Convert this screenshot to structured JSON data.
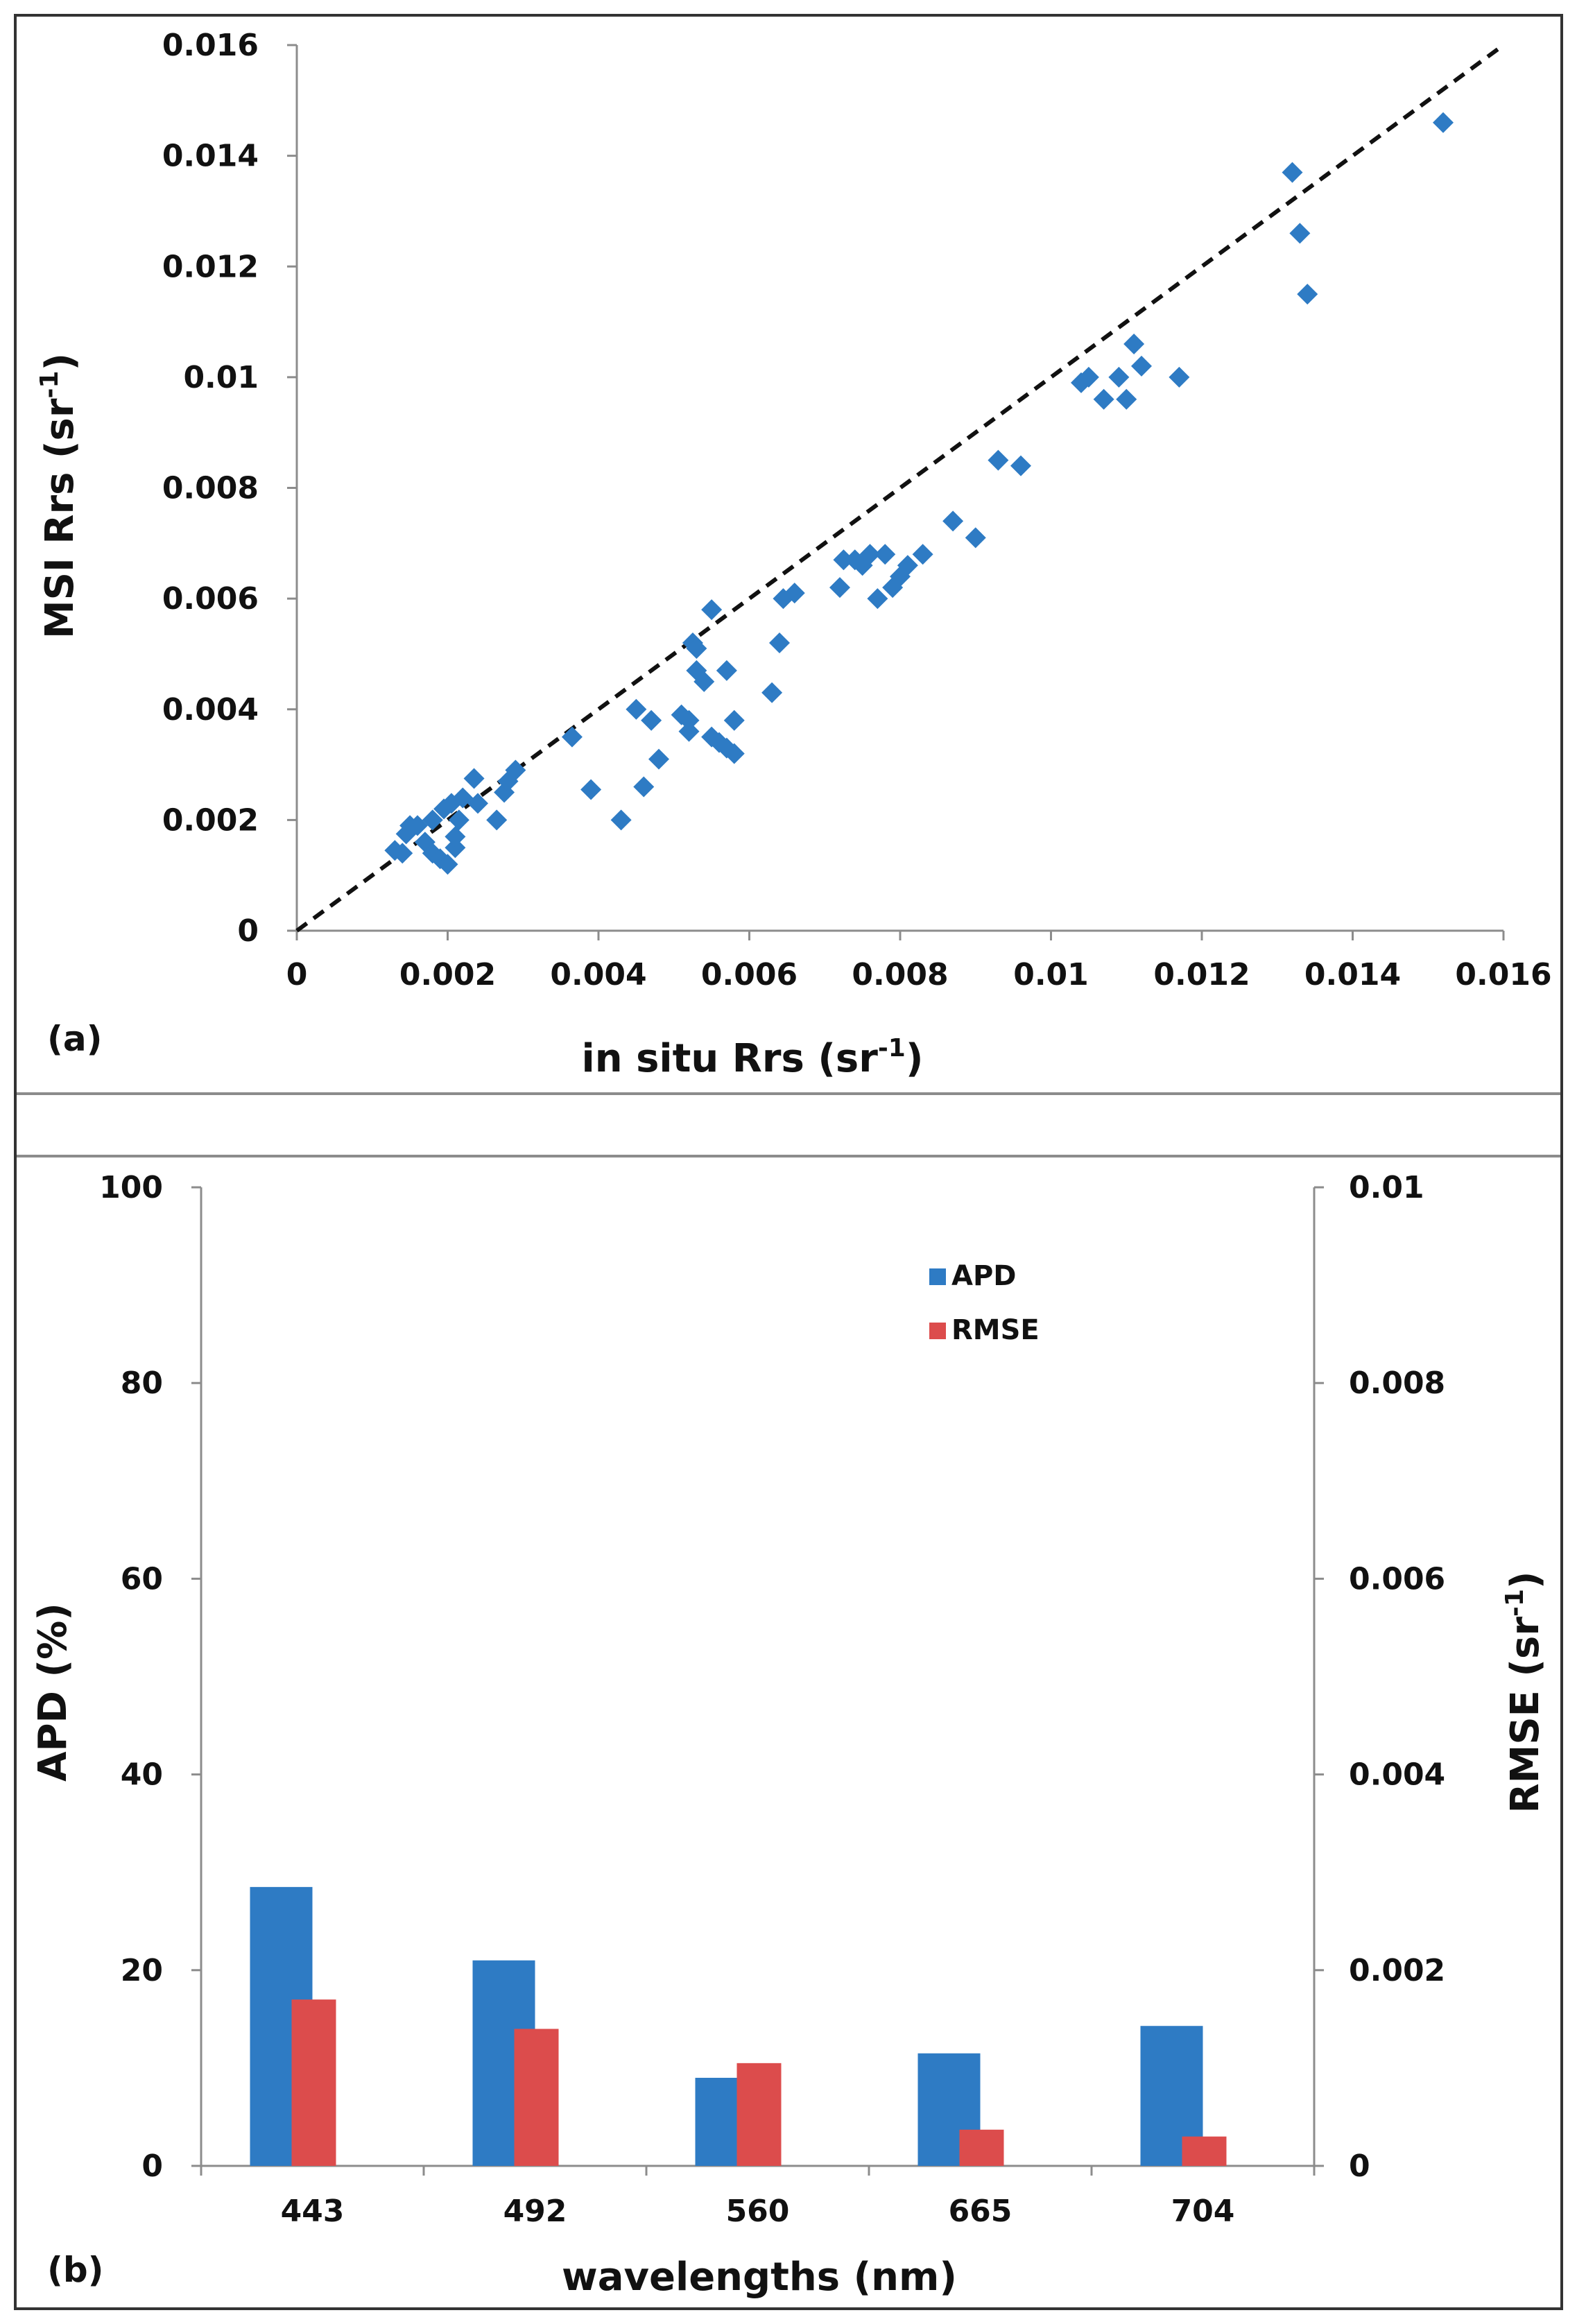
{
  "chart_data": [
    {
      "type": "scatter",
      "panel_label": "(a)",
      "xlabel": "in situ Rrs (sr",
      "ylabel": "MSI Rrs (sr",
      "unit_superscript": "-1",
      "unit_close": ")",
      "xlim": [
        0,
        0.016
      ],
      "ylim": [
        0,
        0.016
      ],
      "xticks": [
        "0",
        "0.002",
        "0.004",
        "0.006",
        "0.008",
        "0.01",
        "0.012",
        "0.014",
        "0.016"
      ],
      "yticks": [
        "0",
        "0.002",
        "0.004",
        "0.006",
        "0.008",
        "0.01",
        "0.012",
        "0.014",
        "0.016"
      ],
      "reference_line": "1:1",
      "marker_color": "#2e7bc4",
      "points": [
        [
          0.0013,
          0.00145
        ],
        [
          0.0014,
          0.0014
        ],
        [
          0.00145,
          0.00175
        ],
        [
          0.0015,
          0.0019
        ],
        [
          0.0016,
          0.0019
        ],
        [
          0.0017,
          0.0016
        ],
        [
          0.0018,
          0.0014
        ],
        [
          0.0019,
          0.0013
        ],
        [
          0.0018,
          0.002
        ],
        [
          0.002,
          0.0012
        ],
        [
          0.00195,
          0.0022
        ],
        [
          0.0021,
          0.0015
        ],
        [
          0.0021,
          0.0017
        ],
        [
          0.00215,
          0.002
        ],
        [
          0.00205,
          0.0023
        ],
        [
          0.0022,
          0.0024
        ],
        [
          0.00235,
          0.00275
        ],
        [
          0.0024,
          0.0023
        ],
        [
          0.00265,
          0.002
        ],
        [
          0.00275,
          0.0025
        ],
        [
          0.0028,
          0.0027
        ],
        [
          0.0029,
          0.0029
        ],
        [
          0.00365,
          0.0035
        ],
        [
          0.0039,
          0.00255
        ],
        [
          0.0043,
          0.002
        ],
        [
          0.0045,
          0.004
        ],
        [
          0.0046,
          0.0026
        ],
        [
          0.0047,
          0.0038
        ],
        [
          0.0048,
          0.0031
        ],
        [
          0.0051,
          0.0039
        ],
        [
          0.0052,
          0.0038
        ],
        [
          0.0052,
          0.0036
        ],
        [
          0.0053,
          0.0047
        ],
        [
          0.00525,
          0.0052
        ],
        [
          0.0053,
          0.0051
        ],
        [
          0.0054,
          0.0045
        ],
        [
          0.0055,
          0.0058
        ],
        [
          0.0055,
          0.0035
        ],
        [
          0.0056,
          0.0034
        ],
        [
          0.0057,
          0.0033
        ],
        [
          0.0057,
          0.0047
        ],
        [
          0.0058,
          0.0038
        ],
        [
          0.0058,
          0.0032
        ],
        [
          0.0063,
          0.0043
        ],
        [
          0.0064,
          0.0052
        ],
        [
          0.00645,
          0.006
        ],
        [
          0.0066,
          0.0061
        ],
        [
          0.0072,
          0.0062
        ],
        [
          0.00725,
          0.0067
        ],
        [
          0.0074,
          0.0067
        ],
        [
          0.0075,
          0.0066
        ],
        [
          0.0076,
          0.0068
        ],
        [
          0.0077,
          0.006
        ],
        [
          0.0078,
          0.0068
        ],
        [
          0.0079,
          0.0062
        ],
        [
          0.008,
          0.0064
        ],
        [
          0.0081,
          0.0066
        ],
        [
          0.0083,
          0.0068
        ],
        [
          0.0087,
          0.0074
        ],
        [
          0.009,
          0.0071
        ],
        [
          0.0093,
          0.0085
        ],
        [
          0.0096,
          0.0084
        ],
        [
          0.0104,
          0.0099
        ],
        [
          0.0105,
          0.01
        ],
        [
          0.0107,
          0.0096
        ],
        [
          0.0109,
          0.01
        ],
        [
          0.011,
          0.0096
        ],
        [
          0.0111,
          0.0106
        ],
        [
          0.0112,
          0.0102
        ],
        [
          0.0117,
          0.01
        ],
        [
          0.0132,
          0.0137
        ],
        [
          0.0133,
          0.0126
        ],
        [
          0.0134,
          0.0115
        ],
        [
          0.0152,
          0.0146
        ]
      ]
    },
    {
      "type": "bar",
      "panel_label": "(b)",
      "xlabel": "wavelengths (nm)",
      "ylabel_left": "APD (%)",
      "ylabel_right": "RMSE (sr",
      "unit_superscript": "-1",
      "unit_close": ")",
      "categories": [
        "443",
        "492",
        "560",
        "665",
        "704"
      ],
      "ylim_left": [
        0,
        100
      ],
      "ylim_right": [
        0,
        0.01
      ],
      "yticks_left": [
        "0",
        "20",
        "40",
        "60",
        "80",
        "100"
      ],
      "yticks_right": [
        "0",
        "0.002",
        "0.004",
        "0.006",
        "0.008",
        "0.01"
      ],
      "series": [
        {
          "name": "APD",
          "axis": "left",
          "color": "#2e7bc4",
          "values": [
            28.5,
            21,
            9,
            11.5,
            14.3
          ]
        },
        {
          "name": "RMSE",
          "axis": "right",
          "color": "#dc4c4c",
          "values": [
            0.0017,
            0.0014,
            0.00105,
            0.00037,
            0.0003
          ]
        }
      ],
      "legend_position": "top-center"
    }
  ]
}
